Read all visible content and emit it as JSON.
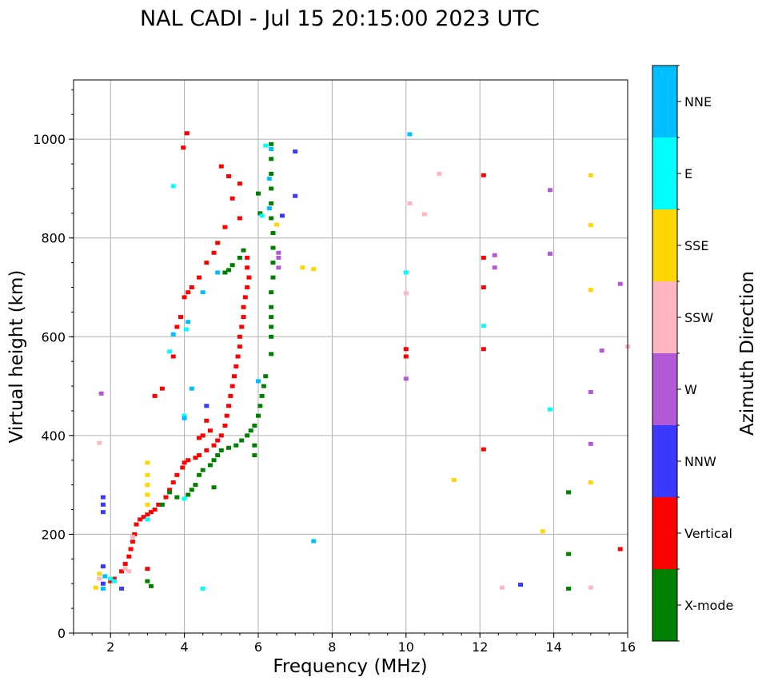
{
  "chart_data": {
    "type": "scatter",
    "title": "NAL CADI - Jul 15 20:15:00 2023 UTC",
    "xlabel": "Frequency (MHz)",
    "ylabel": "Virtual height (km)",
    "xlim": [
      1,
      16
    ],
    "ylim": [
      0,
      1120
    ],
    "xticks": [
      2,
      4,
      6,
      8,
      10,
      12,
      14,
      16
    ],
    "yticks": [
      0,
      200,
      400,
      600,
      800,
      1000
    ],
    "x_minor_step": 0.5,
    "y_minor_step": 50,
    "grid": true,
    "colorbar": {
      "label": "Azimuth Direction",
      "categories": [
        {
          "name": "X-mode",
          "color": "#008000"
        },
        {
          "name": "Vertical",
          "color": "#ff0000"
        },
        {
          "name": "NNW",
          "color": "#3a3aff"
        },
        {
          "name": "W",
          "color": "#b25ad6"
        },
        {
          "name": "SSW",
          "color": "#ffb6c1"
        },
        {
          "name": "SSE",
          "color": "#ffd700"
        },
        {
          "name": "E",
          "color": "#00ffff"
        },
        {
          "name": "NNE",
          "color": "#00bfff"
        }
      ]
    },
    "series": [
      {
        "name": "Vertical",
        "points": [
          [
            4.07,
            1012
          ],
          [
            3.97,
            983
          ],
          [
            5.0,
            945
          ],
          [
            5.2,
            925
          ],
          [
            5.5,
            910
          ],
          [
            5.3,
            880
          ],
          [
            5.5,
            840
          ],
          [
            5.1,
            822
          ],
          [
            4.9,
            790
          ],
          [
            4.8,
            770
          ],
          [
            4.6,
            750
          ],
          [
            4.4,
            720
          ],
          [
            4.2,
            700
          ],
          [
            4.1,
            690
          ],
          [
            4.0,
            680
          ],
          [
            5.7,
            760
          ],
          [
            5.7,
            740
          ],
          [
            5.75,
            720
          ],
          [
            5.7,
            700
          ],
          [
            5.65,
            680
          ],
          [
            5.6,
            660
          ],
          [
            5.6,
            640
          ],
          [
            5.55,
            620
          ],
          [
            5.5,
            600
          ],
          [
            5.5,
            580
          ],
          [
            5.45,
            560
          ],
          [
            5.4,
            540
          ],
          [
            5.35,
            520
          ],
          [
            5.3,
            500
          ],
          [
            5.25,
            480
          ],
          [
            5.2,
            460
          ],
          [
            5.15,
            440
          ],
          [
            5.1,
            420
          ],
          [
            5.0,
            400
          ],
          [
            4.9,
            390
          ],
          [
            4.8,
            380
          ],
          [
            4.6,
            370
          ],
          [
            4.4,
            360
          ],
          [
            4.3,
            355
          ],
          [
            4.1,
            350
          ],
          [
            4.0,
            345
          ],
          [
            3.95,
            335
          ],
          [
            3.8,
            320
          ],
          [
            3.7,
            305
          ],
          [
            3.6,
            290
          ],
          [
            3.5,
            275
          ],
          [
            3.3,
            260
          ],
          [
            3.2,
            250
          ],
          [
            3.1,
            245
          ],
          [
            3.0,
            240
          ],
          [
            2.9,
            235
          ],
          [
            2.8,
            230
          ],
          [
            2.7,
            220
          ],
          [
            2.65,
            200
          ],
          [
            2.6,
            185
          ],
          [
            2.55,
            170
          ],
          [
            2.5,
            155
          ],
          [
            2.4,
            140
          ],
          [
            2.3,
            125
          ],
          [
            2.1,
            110
          ],
          [
            2.0,
            105
          ],
          [
            4.6,
            430
          ],
          [
            4.7,
            410
          ],
          [
            4.5,
            400
          ],
          [
            4.4,
            395
          ],
          [
            3.7,
            560
          ],
          [
            3.8,
            620
          ],
          [
            3.9,
            640
          ],
          [
            3.2,
            480
          ],
          [
            3.4,
            495
          ],
          [
            12.1,
            927
          ],
          [
            12.1,
            760
          ],
          [
            12.1,
            700
          ],
          [
            12.1,
            575
          ],
          [
            12.1,
            372
          ],
          [
            10.0,
            575
          ],
          [
            10.0,
            560
          ],
          [
            15.8,
            170
          ],
          [
            3.0,
            130
          ]
        ]
      },
      {
        "name": "X-mode",
        "points": [
          [
            6.35,
            990
          ],
          [
            6.35,
            960
          ],
          [
            6.35,
            930
          ],
          [
            6.35,
            900
          ],
          [
            6.35,
            870
          ],
          [
            6.35,
            840
          ],
          [
            6.4,
            810
          ],
          [
            6.4,
            780
          ],
          [
            6.4,
            750
          ],
          [
            6.4,
            720
          ],
          [
            6.35,
            690
          ],
          [
            6.35,
            660
          ],
          [
            6.35,
            640
          ],
          [
            6.35,
            620
          ],
          [
            6.35,
            600
          ],
          [
            6.35,
            565
          ],
          [
            6.2,
            520
          ],
          [
            6.15,
            500
          ],
          [
            6.1,
            480
          ],
          [
            6.05,
            460
          ],
          [
            6.0,
            440
          ],
          [
            5.9,
            420
          ],
          [
            5.8,
            410
          ],
          [
            5.7,
            400
          ],
          [
            5.55,
            390
          ],
          [
            5.4,
            380
          ],
          [
            5.2,
            375
          ],
          [
            5.0,
            370
          ],
          [
            4.9,
            360
          ],
          [
            4.8,
            350
          ],
          [
            4.7,
            340
          ],
          [
            4.5,
            330
          ],
          [
            4.4,
            320
          ],
          [
            4.3,
            300
          ],
          [
            4.2,
            290
          ],
          [
            4.1,
            280
          ],
          [
            6.05,
            850
          ],
          [
            6.0,
            890
          ],
          [
            5.6,
            775
          ],
          [
            5.5,
            760
          ],
          [
            5.3,
            745
          ],
          [
            5.2,
            735
          ],
          [
            5.1,
            730
          ],
          [
            4.8,
            295
          ],
          [
            3.8,
            275
          ],
          [
            3.4,
            260
          ],
          [
            3.6,
            285
          ],
          [
            5.9,
            380
          ],
          [
            5.9,
            360
          ],
          [
            14.4,
            285
          ],
          [
            14.4,
            160
          ],
          [
            14.4,
            90
          ],
          [
            3.0,
            105
          ],
          [
            3.1,
            95
          ]
        ]
      },
      {
        "name": "NNW",
        "points": [
          [
            1.8,
            275
          ],
          [
            1.8,
            260
          ],
          [
            1.8,
            245
          ],
          [
            1.8,
            100
          ],
          [
            2.3,
            90
          ],
          [
            13.1,
            98
          ],
          [
            7.0,
            975
          ],
          [
            7.0,
            885
          ],
          [
            6.65,
            845
          ],
          [
            4.6,
            460
          ],
          [
            1.8,
            135
          ]
        ]
      },
      {
        "name": "W",
        "points": [
          [
            6.55,
            760
          ],
          [
            6.55,
            770
          ],
          [
            6.55,
            740
          ],
          [
            10.0,
            515
          ],
          [
            12.4,
            740
          ],
          [
            12.4,
            765
          ],
          [
            13.9,
            897
          ],
          [
            13.9,
            768
          ],
          [
            15.0,
            488
          ],
          [
            15.0,
            383
          ],
          [
            15.3,
            572
          ],
          [
            15.8,
            707
          ],
          [
            1.75,
            485
          ]
        ]
      },
      {
        "name": "SSW",
        "points": [
          [
            2.5,
            125
          ],
          [
            2.4,
            130
          ],
          [
            1.7,
            110
          ],
          [
            12.6,
            92
          ],
          [
            15.0,
            92
          ],
          [
            10.9,
            930
          ],
          [
            10.5,
            848
          ],
          [
            10.0,
            688
          ],
          [
            16.0,
            580
          ],
          [
            10.1,
            870
          ],
          [
            2.6,
            195
          ],
          [
            1.7,
            385
          ]
        ]
      },
      {
        "name": "SSE",
        "points": [
          [
            3.0,
            345
          ],
          [
            3.0,
            320
          ],
          [
            3.0,
            300
          ],
          [
            3.0,
            280
          ],
          [
            3.0,
            260
          ],
          [
            1.6,
            92
          ],
          [
            1.7,
            120
          ],
          [
            6.5,
            827
          ],
          [
            7.2,
            740
          ],
          [
            7.5,
            737
          ],
          [
            11.3,
            310
          ],
          [
            13.7,
            206
          ],
          [
            15.0,
            927
          ],
          [
            15.0,
            826
          ],
          [
            15.0,
            695
          ],
          [
            15.0,
            305
          ]
        ]
      },
      {
        "name": "E",
        "points": [
          [
            3.7,
            905
          ],
          [
            4.05,
            615
          ],
          [
            3.6,
            570
          ],
          [
            4.0,
            440
          ],
          [
            4.5,
            90
          ],
          [
            2.0,
            110
          ],
          [
            4.0,
            272
          ],
          [
            6.2,
            987
          ],
          [
            6.1,
            845
          ],
          [
            3.0,
            230
          ],
          [
            10.0,
            730
          ],
          [
            12.1,
            622
          ],
          [
            13.9,
            453
          ],
          [
            2.1,
            105
          ]
        ]
      },
      {
        "name": "NNE",
        "points": [
          [
            3.7,
            605
          ],
          [
            4.1,
            630
          ],
          [
            4.2,
            495
          ],
          [
            4.0,
            435
          ],
          [
            7.5,
            186
          ],
          [
            1.8,
            90
          ],
          [
            1.85,
            115
          ],
          [
            6.35,
            980
          ],
          [
            6.3,
            920
          ],
          [
            6.3,
            860
          ],
          [
            10.1,
            1010
          ],
          [
            6.0,
            510
          ],
          [
            4.9,
            730
          ],
          [
            4.5,
            690
          ]
        ]
      }
    ]
  }
}
